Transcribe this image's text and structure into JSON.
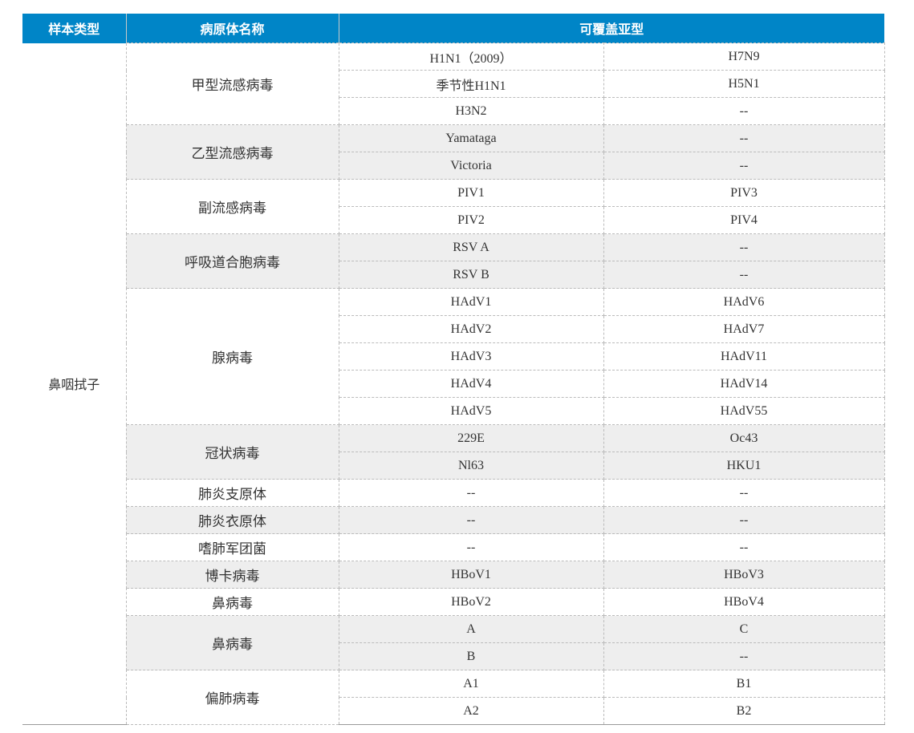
{
  "header": {
    "sample_type": "样本类型",
    "pathogen_name": "病原体名称",
    "subtypes": "可覆盖亚型"
  },
  "sample_type": "鼻咽拭子",
  "groups": [
    {
      "name": "甲型流感病毒",
      "shaded": false,
      "rows": [
        [
          "H1N1（2009）",
          "H7N9"
        ],
        [
          "季节性H1N1",
          "H5N1"
        ],
        [
          "H3N2",
          "--"
        ]
      ]
    },
    {
      "name": "乙型流感病毒",
      "shaded": true,
      "rows": [
        [
          "Yamataga",
          "--"
        ],
        [
          "Victoria",
          "--"
        ]
      ]
    },
    {
      "name": "副流感病毒",
      "shaded": false,
      "rows": [
        [
          "PIV1",
          "PIV3"
        ],
        [
          "PIV2",
          "PIV4"
        ]
      ]
    },
    {
      "name": "呼吸道合胞病毒",
      "shaded": true,
      "rows": [
        [
          "RSV A",
          "--"
        ],
        [
          "RSV B",
          "--"
        ]
      ]
    },
    {
      "name": "腺病毒",
      "shaded": false,
      "rows": [
        [
          "HAdV1",
          "HAdV6"
        ],
        [
          "HAdV2",
          "HAdV7"
        ],
        [
          "HAdV3",
          "HAdV11"
        ],
        [
          "HAdV4",
          "HAdV14"
        ],
        [
          "HAdV5",
          "HAdV55"
        ]
      ]
    },
    {
      "name": "冠状病毒",
      "shaded": true,
      "rows": [
        [
          "229E",
          "Oc43"
        ],
        [
          "Nl63",
          "HKU1"
        ]
      ]
    },
    {
      "name": "肺炎支原体",
      "shaded": false,
      "rows": [
        [
          "--",
          "--"
        ]
      ]
    },
    {
      "name": "肺炎衣原体",
      "shaded": true,
      "rows": [
        [
          "--",
          "--"
        ]
      ]
    },
    {
      "name": "嗜肺军团菌",
      "shaded": false,
      "rows": [
        [
          "--",
          "--"
        ]
      ]
    },
    {
      "name": "博卡病毒",
      "shaded": true,
      "rows": [
        [
          "HBoV1",
          "HBoV3"
        ]
      ]
    },
    {
      "name": "鼻病毒",
      "shaded": false,
      "rows": [
        [
          "HBoV2",
          "HBoV4"
        ]
      ]
    },
    {
      "name": "鼻病毒",
      "shaded": true,
      "rows": [
        [
          "A",
          "C"
        ],
        [
          "B",
          "--"
        ]
      ]
    },
    {
      "name": "偏肺病毒",
      "shaded": false,
      "rows": [
        [
          "A1",
          "B1"
        ],
        [
          "A2",
          "B2"
        ]
      ]
    }
  ],
  "colors": {
    "header_bg": "#0085c7",
    "shade_bg": "#eeeeee"
  }
}
